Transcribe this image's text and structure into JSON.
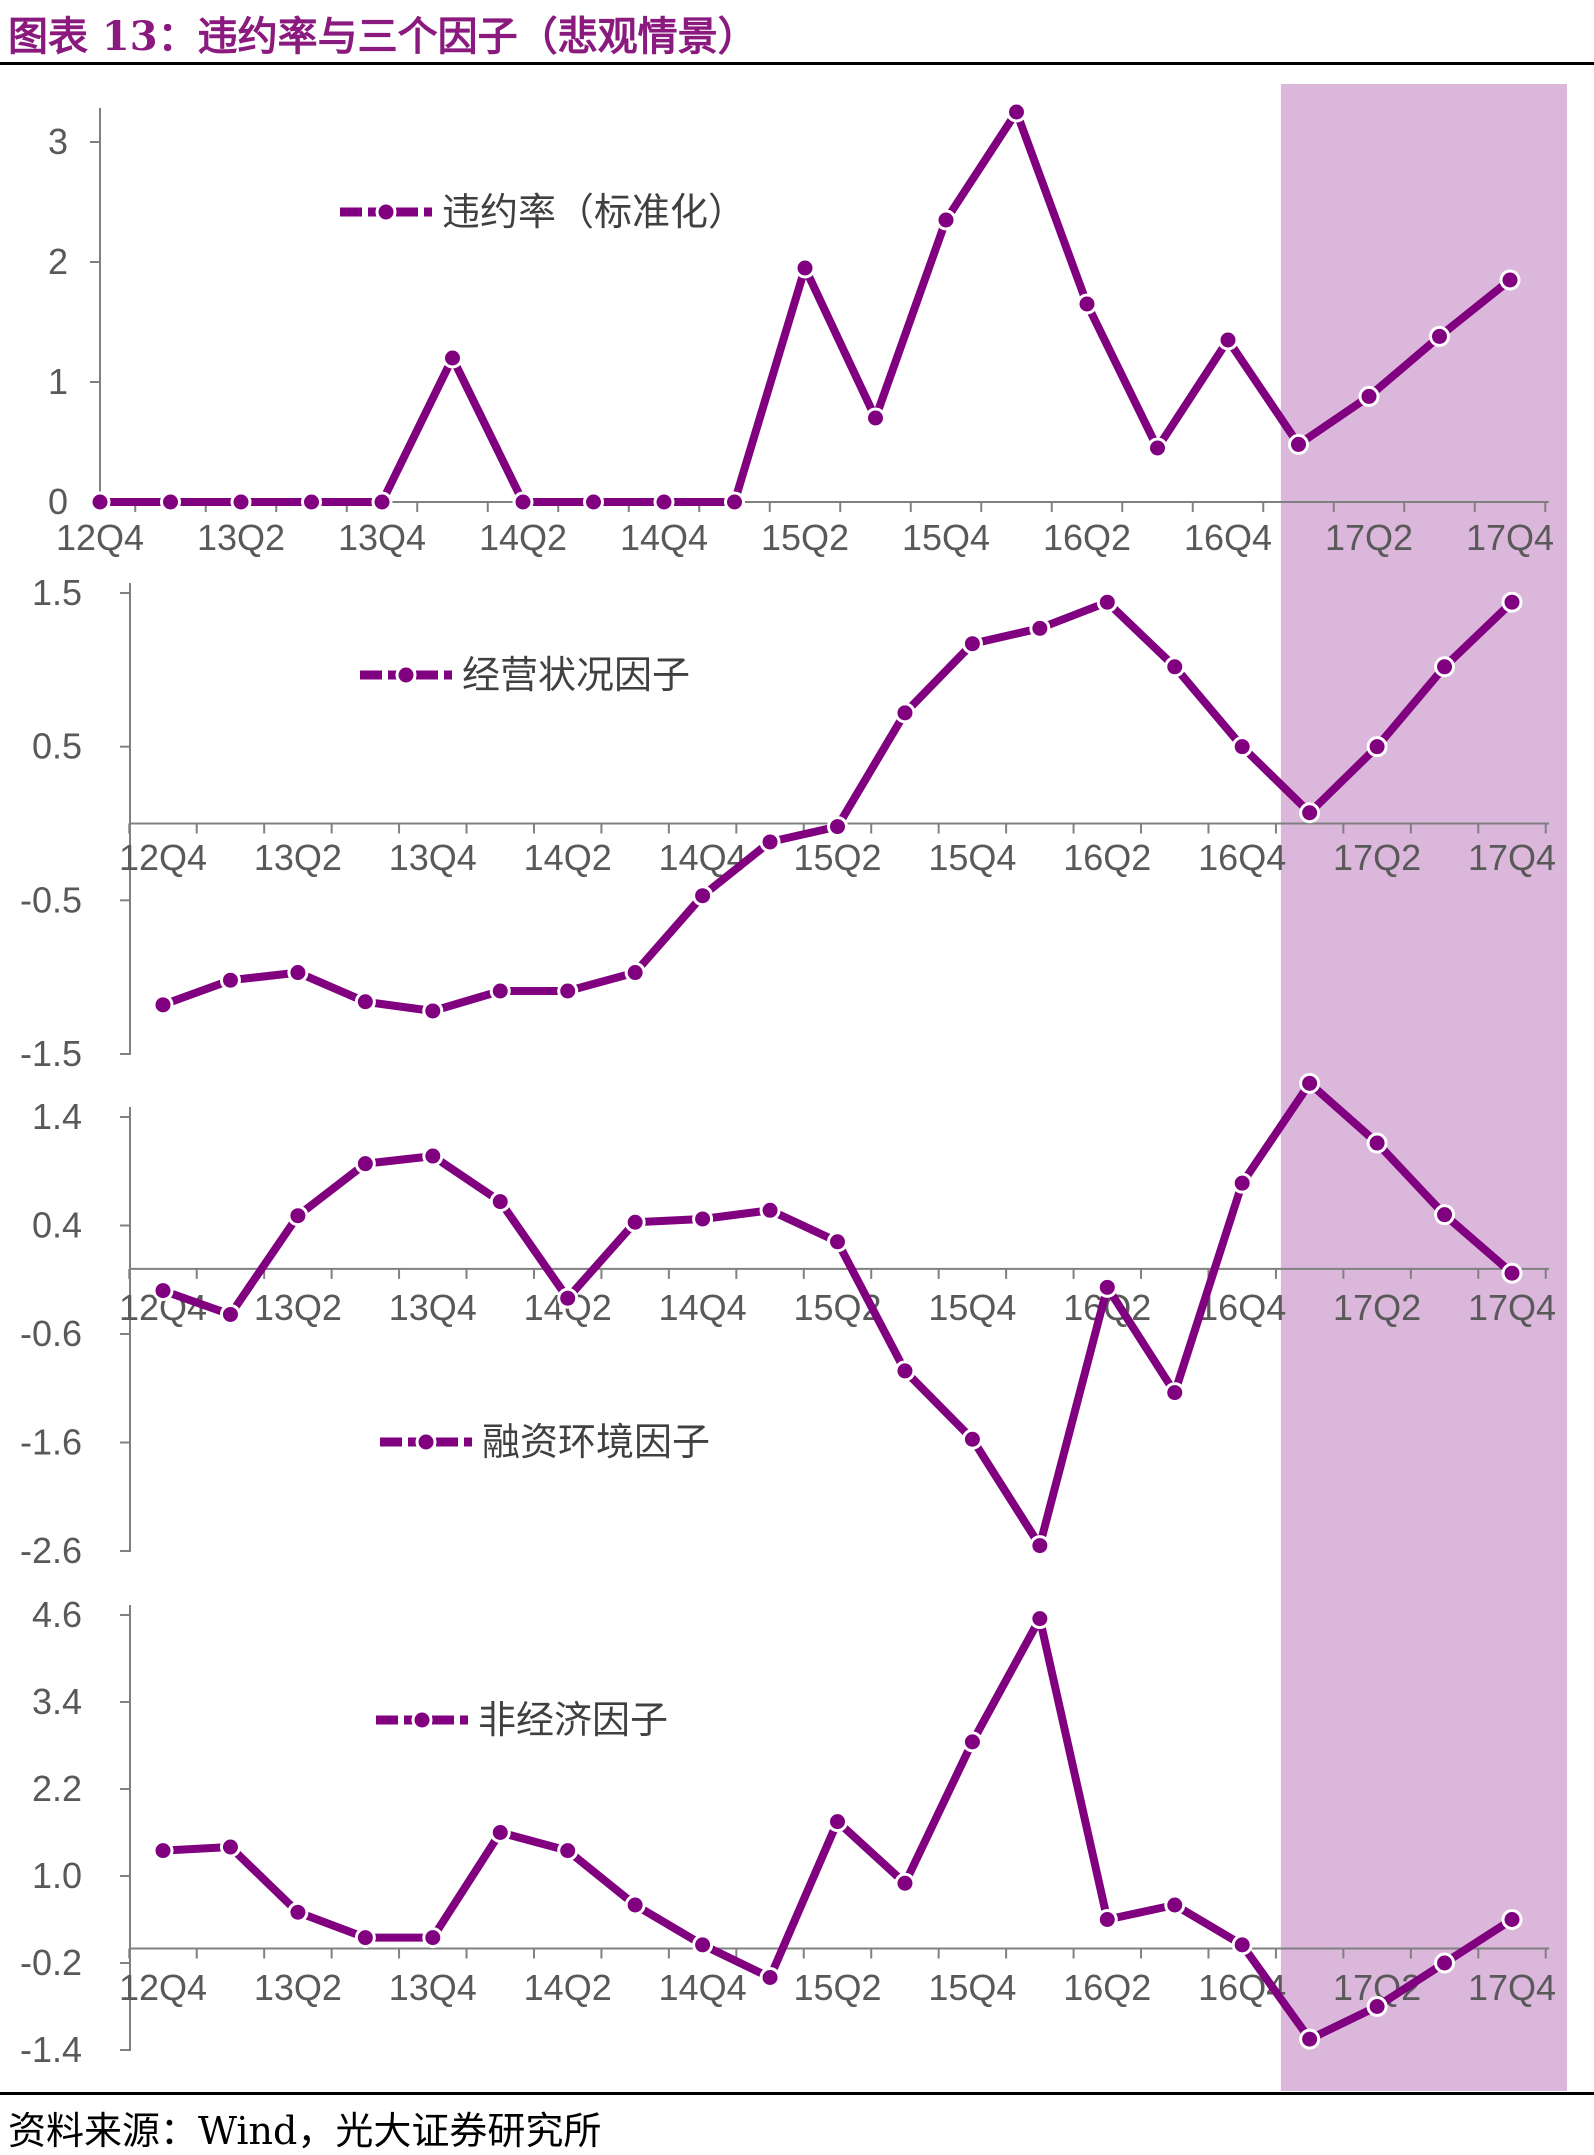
{
  "title": "图表 13：违约率与三个因子（悲观情景）",
  "source": "资料来源：Wind，光大证券研究所",
  "colors": {
    "series": "#800080",
    "highlight": "#dbb7dc",
    "axis": "#808080",
    "tick_text": "#595959"
  },
  "shaded_region": {
    "from": "17Q1",
    "to": "17Q4",
    "label": ""
  },
  "chart_data": [
    {
      "type": "line",
      "legend": "违约率（标准化）",
      "x": [
        "12Q4",
        "13Q1",
        "13Q2",
        "13Q3",
        "13Q4",
        "14Q1",
        "14Q2",
        "14Q3",
        "14Q4",
        "15Q1",
        "15Q2",
        "15Q3",
        "15Q4",
        "16Q1",
        "16Q2",
        "16Q3",
        "16Q4",
        "17Q1",
        "17Q2",
        "17Q3",
        "17Q4"
      ],
      "x_tick_labels": [
        "12Q4",
        "13Q2",
        "13Q4",
        "14Q2",
        "14Q4",
        "15Q2",
        "15Q4",
        "16Q2",
        "16Q4",
        "17Q2",
        "17Q4"
      ],
      "values": [
        0,
        0,
        0,
        0,
        0,
        1.2,
        0,
        0,
        0,
        0,
        1.95,
        0.7,
        2.35,
        3.25,
        1.65,
        0.45,
        1.35,
        0.48,
        0.88,
        1.38,
        1.85
      ],
      "ylim": [
        0,
        3.2
      ],
      "y_ticks": [
        0,
        1,
        2,
        3
      ],
      "y_tick_labels": [
        "0",
        "1",
        "2",
        "3"
      ]
    },
    {
      "type": "line",
      "legend": "经营状况因子",
      "x": [
        "12Q4",
        "13Q1",
        "13Q2",
        "13Q3",
        "13Q4",
        "14Q1",
        "14Q2",
        "14Q3",
        "14Q4",
        "15Q1",
        "15Q2",
        "15Q3",
        "15Q4",
        "16Q1",
        "16Q2",
        "16Q3",
        "16Q4",
        "17Q1",
        "17Q2",
        "17Q3",
        "17Q4"
      ],
      "x_tick_labels": [
        "12Q4",
        "13Q2",
        "13Q4",
        "14Q2",
        "14Q4",
        "15Q2",
        "15Q4",
        "16Q2",
        "16Q4",
        "17Q2",
        "17Q4"
      ],
      "values": [
        -1.18,
        -1.02,
        -0.97,
        -1.16,
        -1.22,
        -1.09,
        -1.09,
        -0.97,
        -0.47,
        -0.12,
        -0.02,
        0.72,
        1.17,
        1.27,
        1.44,
        1.02,
        0.5,
        0.07,
        0.5,
        1.02,
        1.44
      ],
      "ylim": [
        -1.5,
        1.5
      ],
      "y_ticks": [
        -1.5,
        -0.5,
        0.5,
        1.5
      ],
      "y_tick_labels": [
        "-1.5",
        "-0.5",
        "0.5",
        "1.5"
      ]
    },
    {
      "type": "line",
      "legend": "融资环境因子",
      "x": [
        "12Q4",
        "13Q1",
        "13Q2",
        "13Q3",
        "13Q4",
        "14Q1",
        "14Q2",
        "14Q3",
        "14Q4",
        "15Q1",
        "15Q2",
        "15Q3",
        "15Q4",
        "16Q1",
        "16Q2",
        "16Q3",
        "16Q4",
        "17Q1",
        "17Q2",
        "17Q3",
        "17Q4"
      ],
      "x_tick_labels": [
        "12Q4",
        "13Q2",
        "13Q4",
        "14Q2",
        "14Q4",
        "15Q2",
        "15Q4",
        "16Q2",
        "16Q4",
        "17Q2",
        "17Q4"
      ],
      "values": [
        -0.2,
        -0.42,
        0.49,
        0.97,
        1.04,
        0.62,
        -0.27,
        0.43,
        0.46,
        0.54,
        0.25,
        -0.94,
        -1.57,
        -2.55,
        -0.17,
        -1.14,
        0.79,
        1.71,
        1.16,
        0.5,
        -0.04
      ],
      "ylim": [
        -2.6,
        1.4
      ],
      "y_ticks": [
        -2.6,
        -1.6,
        -0.6,
        0.4,
        1.4
      ],
      "y_tick_labels": [
        "-2.6",
        "-1.6",
        "-0.6",
        "0.4",
        "1.4"
      ]
    },
    {
      "type": "line",
      "legend": "非经济因子",
      "x": [
        "12Q4",
        "13Q1",
        "13Q2",
        "13Q3",
        "13Q4",
        "14Q1",
        "14Q2",
        "14Q3",
        "14Q4",
        "15Q1",
        "15Q2",
        "15Q3",
        "15Q4",
        "16Q1",
        "16Q2",
        "16Q3",
        "16Q4",
        "17Q1",
        "17Q2",
        "17Q3",
        "17Q4"
      ],
      "x_tick_labels": [
        "12Q4",
        "13Q2",
        "13Q4",
        "14Q2",
        "14Q4",
        "15Q2",
        "15Q4",
        "16Q2",
        "16Q4",
        "17Q2",
        "17Q4"
      ],
      "values": [
        1.35,
        1.4,
        0.5,
        0.15,
        0.15,
        1.6,
        1.35,
        0.6,
        0.05,
        -0.4,
        1.75,
        0.9,
        2.85,
        4.55,
        0.4,
        0.6,
        0.05,
        -1.25,
        -0.8,
        -0.2,
        0.4
      ],
      "ylim": [
        -1.4,
        4.6
      ],
      "y_ticks": [
        -1.4,
        -0.2,
        1.0,
        2.2,
        3.4,
        4.6
      ],
      "y_tick_labels": [
        "-1.4",
        "-0.2",
        "1.0",
        "2.2",
        "3.4",
        "4.6"
      ]
    }
  ]
}
